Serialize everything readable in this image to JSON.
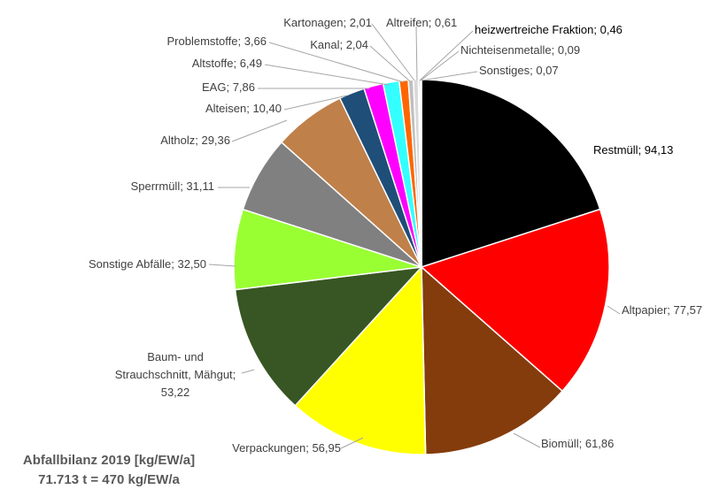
{
  "chart_data": {
    "type": "pie",
    "title": "",
    "caption": [
      "Abfallbilanz 2019 [kg/EW/a]",
      "71.713 t = 470 kg/EW/a"
    ],
    "start_angle_deg": 0,
    "direction": "clockwise",
    "slices": [
      {
        "label": "Restmüll",
        "value": 94.13,
        "value_text": "94,13",
        "color": "#000000"
      },
      {
        "label": "Altpapier",
        "value": 77.57,
        "value_text": "77,57",
        "color": "#ff0000"
      },
      {
        "label": "Biomüll",
        "value": 61.86,
        "value_text": "61,86",
        "color": "#843c0c"
      },
      {
        "label": "Verpackungen",
        "value": 56.95,
        "value_text": "56,95",
        "color": "#ffff00"
      },
      {
        "label": "Baum- und Strauchschnitt, Mähgut",
        "value": 53.22,
        "value_text": "53,22",
        "color": "#375623"
      },
      {
        "label": "Sonstige Abfälle",
        "value": 32.5,
        "value_text": "32,50",
        "color": "#99ff33"
      },
      {
        "label": "Sperrmüll",
        "value": 31.11,
        "value_text": "31,11",
        "color": "#808080"
      },
      {
        "label": "Altholz",
        "value": 29.36,
        "value_text": "29,36",
        "color": "#c0804a"
      },
      {
        "label": "Alteisen",
        "value": 10.4,
        "value_text": "10,40",
        "color": "#1f4e79"
      },
      {
        "label": "EAG",
        "value": 7.86,
        "value_text": "7,86",
        "color": "#ff00ff"
      },
      {
        "label": "Altstoffe",
        "value": 6.49,
        "value_text": "6,49",
        "color": "#33ffff"
      },
      {
        "label": "Problemstoffe",
        "value": 3.66,
        "value_text": "3,66",
        "color": "#ff6600"
      },
      {
        "label": "Kanal",
        "value": 2.04,
        "value_text": "2,04",
        "color": "#bfbfbf"
      },
      {
        "label": "Kartonagen",
        "value": 2.01,
        "value_text": "2,01",
        "color": "#d9d9d9"
      },
      {
        "label": "Altreifen",
        "value": 0.61,
        "value_text": "0,61",
        "color": "#7f7f7f"
      },
      {
        "label": "heizwertreiche Fraktion",
        "value": 0.46,
        "value_text": "0,46",
        "color": "#404040"
      },
      {
        "label": "Nichteisenmetalle",
        "value": 0.09,
        "value_text": "0,09",
        "color": "#a6a6a6"
      },
      {
        "label": "Sonstiges",
        "value": 0.07,
        "value_text": "0,07",
        "color": "#595959"
      }
    ]
  }
}
